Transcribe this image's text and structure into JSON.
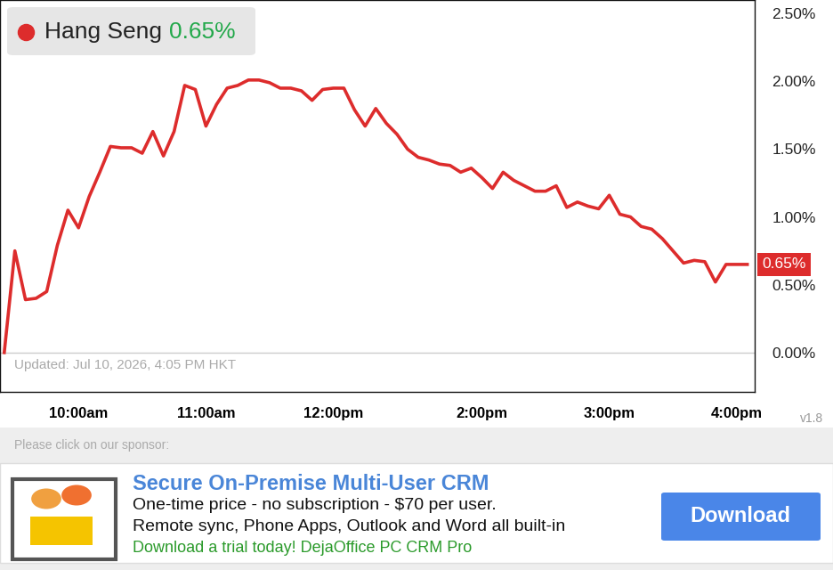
{
  "chart_data": {
    "type": "line",
    "categories": [
      null,
      null,
      null,
      null,
      null,
      null,
      null,
      "10:00am",
      null,
      null,
      null,
      null,
      null,
      null,
      null,
      null,
      null,
      null,
      null,
      "11:00am",
      null,
      null,
      null,
      null,
      null,
      null,
      null,
      null,
      null,
      null,
      null,
      "12:00pm",
      null,
      null,
      null,
      null,
      null,
      null,
      null,
      null,
      null,
      null,
      null,
      null,
      null,
      "2:00pm",
      null,
      null,
      null,
      null,
      null,
      null,
      null,
      null,
      null,
      null,
      null,
      "3:00pm",
      null,
      null,
      null,
      null,
      null,
      null,
      null,
      null,
      null,
      null,
      null,
      "4:00pm",
      null
    ],
    "series": [
      {
        "name": "Hang Seng",
        "color": "#dd2c2c",
        "values": [
          0.0,
          0.75,
          0.39,
          0.4,
          0.45,
          0.79,
          1.05,
          0.92,
          1.15,
          1.33,
          1.52,
          1.51,
          1.51,
          1.47,
          1.63,
          1.45,
          1.63,
          1.97,
          1.94,
          1.67,
          1.83,
          1.95,
          1.97,
          2.01,
          2.01,
          1.99,
          1.95,
          1.95,
          1.93,
          1.86,
          1.94,
          1.95,
          1.95,
          1.79,
          1.67,
          1.8,
          1.69,
          1.61,
          1.5,
          1.44,
          1.42,
          1.39,
          1.38,
          1.33,
          1.36,
          1.29,
          1.21,
          1.33,
          1.27,
          1.23,
          1.19,
          1.19,
          1.23,
          1.07,
          1.11,
          1.08,
          1.06,
          1.16,
          1.02,
          1.0,
          0.93,
          0.91,
          0.84,
          0.75,
          0.66,
          0.68,
          0.67,
          0.52,
          0.65,
          0.65,
          0.65
        ]
      }
    ],
    "ylim": [
      -0.29,
      2.6
    ],
    "yticks": [
      {
        "value": 0,
        "label": "0.00%"
      },
      {
        "value": 0.5,
        "label": "0.50%"
      },
      {
        "value": 1.0,
        "label": "1.00%"
      },
      {
        "value": 1.5,
        "label": "1.50%"
      },
      {
        "value": 2.0,
        "label": "2.00%"
      },
      {
        "value": 2.5,
        "label": "2.50%"
      }
    ],
    "grid": false,
    "change_label": "0.65%",
    "last_value_label": "0.65%",
    "annotation": "Updated: Jul 10, 2026, 4:05 PM HKT"
  },
  "footer": {
    "version": "v1.8",
    "sponsor_prompt": "Please click on our sponsor:",
    "ad": {
      "title": "Secure On-Premise Multi-User CRM",
      "lines": [
        "One-time price - no subscription - $70 per user.",
        "Remote sync, Phone Apps, Outlook and Word all built-in"
      ],
      "link": "Download a trial today! DejaOffice PC CRM Pro",
      "button": "Download"
    }
  }
}
